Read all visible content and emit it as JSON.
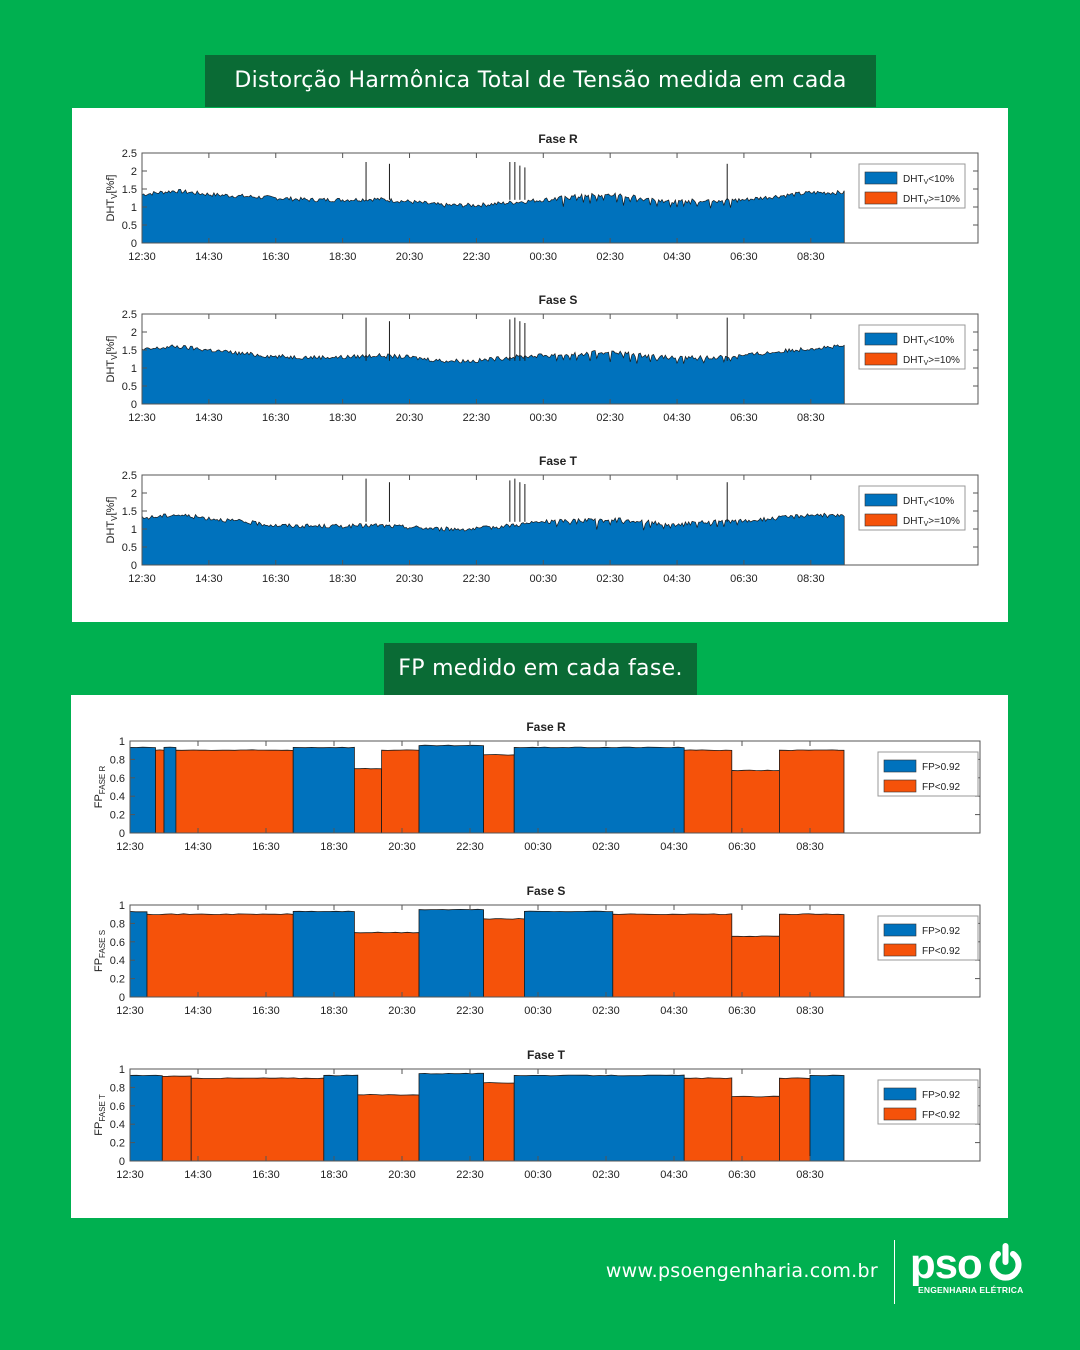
{
  "colors": {
    "background": "#00b050",
    "banner": "#0a6b35",
    "blue": "#0072bd",
    "orange": "#f5520a"
  },
  "section_titles": {
    "dht": "Distorção Harmônica Total de Tensão medida em cada fase.",
    "fp": "FP medido em cada fase."
  },
  "footer": {
    "url": "www.psoengenharia.com.br",
    "logo_text": "pso",
    "logo_subtitle": "ENGENHARIA ELÉTRICA",
    "logo_icon": "power-icon"
  },
  "chart_data": [
    {
      "id": "dht-r",
      "type": "area",
      "title": "Fase R",
      "ylabel": "DHT",
      "ylabel_sub": "V",
      "ylabel_suffix": "[%f]",
      "ylim": [
        0,
        2.5
      ],
      "yticks": [
        "0",
        "0.5",
        "1",
        "1.5",
        "2",
        "2.5"
      ],
      "xlabels": [
        "12:30",
        "14:30",
        "16:30",
        "18:30",
        "20:30",
        "22:30",
        "00:30",
        "02:30",
        "04:30",
        "06:30",
        "08:30"
      ],
      "grid": false,
      "legend_position": "right",
      "legend": [
        {
          "main": "DHT",
          "sub": "V",
          "suffix": "<10%",
          "color": "#0072bd"
        },
        {
          "main": "DHT",
          "sub": "V",
          "suffix": ">=10%",
          "color": "#f5520a"
        }
      ],
      "x": [
        0,
        1,
        2,
        3,
        4,
        5,
        6,
        7,
        8,
        9,
        10,
        11,
        12,
        13,
        14,
        15,
        16,
        17,
        18,
        19,
        20,
        21
      ],
      "y": [
        1.35,
        1.45,
        1.35,
        1.3,
        1.25,
        1.2,
        1.2,
        1.22,
        1.15,
        1.05,
        1.05,
        1.12,
        1.2,
        1.3,
        1.35,
        1.25,
        1.15,
        1.2,
        1.2,
        1.3,
        1.4,
        1.4
      ],
      "spikes": [
        [
          6.7,
          2.25
        ],
        [
          7.4,
          2.2
        ],
        [
          11,
          2.25
        ],
        [
          11.15,
          2.25
        ],
        [
          11.3,
          2.15
        ],
        [
          11.45,
          2.1
        ],
        [
          17.5,
          2.2
        ]
      ]
    },
    {
      "id": "dht-s",
      "type": "area",
      "title": "Fase S",
      "ylabel": "DHT",
      "ylabel_sub": "V",
      "ylabel_suffix": "[%f]",
      "ylim": [
        0,
        2.5
      ],
      "yticks": [
        "0",
        "0.5",
        "1",
        "1.5",
        "2",
        "2.5"
      ],
      "xlabels": [
        "12:30",
        "14:30",
        "16:30",
        "18:30",
        "20:30",
        "22:30",
        "00:30",
        "02:30",
        "04:30",
        "06:30",
        "08:30"
      ],
      "grid": false,
      "legend_position": "right",
      "legend": [
        {
          "main": "DHT",
          "sub": "V",
          "suffix": "<10%",
          "color": "#0072bd"
        },
        {
          "main": "DHT",
          "sub": "V",
          "suffix": ">=10%",
          "color": "#f5520a"
        }
      ],
      "x": [
        0,
        1,
        2,
        3,
        4,
        5,
        6,
        7,
        8,
        9,
        10,
        11,
        12,
        13,
        14,
        15,
        16,
        17,
        18,
        19,
        20,
        21
      ],
      "y": [
        1.5,
        1.6,
        1.5,
        1.4,
        1.32,
        1.3,
        1.3,
        1.35,
        1.3,
        1.2,
        1.2,
        1.3,
        1.35,
        1.4,
        1.45,
        1.35,
        1.28,
        1.3,
        1.35,
        1.45,
        1.55,
        1.6
      ],
      "spikes": [
        [
          6.7,
          2.4
        ],
        [
          7.4,
          2.3
        ],
        [
          11,
          2.35
        ],
        [
          11.15,
          2.4
        ],
        [
          11.3,
          2.3
        ],
        [
          11.45,
          2.25
        ],
        [
          17.5,
          2.4
        ]
      ]
    },
    {
      "id": "dht-t",
      "type": "area",
      "title": "Fase T",
      "ylabel": "DHT",
      "ylabel_sub": "V",
      "ylabel_suffix": "[%f]",
      "ylim": [
        0,
        2.5
      ],
      "yticks": [
        "0",
        "0.5",
        "1",
        "1.5",
        "2",
        "2.5"
      ],
      "xlabels": [
        "12:30",
        "14:30",
        "16:30",
        "18:30",
        "20:30",
        "22:30",
        "00:30",
        "02:30",
        "04:30",
        "06:30",
        "08:30"
      ],
      "grid": false,
      "legend_position": "right",
      "legend": [
        {
          "main": "DHT",
          "sub": "V",
          "suffix": "<10%",
          "color": "#0072bd"
        },
        {
          "main": "DHT",
          "sub": "V",
          "suffix": ">=10%",
          "color": "#f5520a"
        }
      ],
      "x": [
        0,
        1,
        2,
        3,
        4,
        5,
        6,
        7,
        8,
        9,
        10,
        11,
        12,
        13,
        14,
        15,
        16,
        17,
        18,
        19,
        20,
        21
      ],
      "y": [
        1.3,
        1.4,
        1.3,
        1.2,
        1.1,
        1.08,
        1.08,
        1.1,
        1.05,
        1.0,
        1.0,
        1.1,
        1.2,
        1.25,
        1.28,
        1.2,
        1.12,
        1.2,
        1.22,
        1.3,
        1.4,
        1.35
      ],
      "spikes": [
        [
          6.7,
          2.4
        ],
        [
          7.4,
          2.3
        ],
        [
          11,
          2.35
        ],
        [
          11.15,
          2.4
        ],
        [
          11.3,
          2.3
        ],
        [
          11.45,
          2.25
        ],
        [
          17.5,
          2.3
        ]
      ]
    },
    {
      "id": "fp-r",
      "type": "bar",
      "title": "Fase R",
      "ylabel": "FP",
      "ylabel_sub": "FASE R",
      "ylim": [
        0,
        1
      ],
      "yticks": [
        "0",
        "0.2",
        "0.4",
        "0.6",
        "0.8",
        "1"
      ],
      "xlabels": [
        "12:30",
        "14:30",
        "16:30",
        "18:30",
        "20:30",
        "22:30",
        "00:30",
        "02:30",
        "04:30",
        "06:30",
        "08:30"
      ],
      "grid": false,
      "legend_position": "right",
      "legend": [
        {
          "main": "FP>0.92",
          "color": "#0072bd"
        },
        {
          "main": "FP<0.92",
          "color": "#f5520a"
        }
      ],
      "segments": [
        {
          "x0": 0,
          "x1": 0.75,
          "value": 0.93,
          "class": "FP>0.92"
        },
        {
          "x0": 0.75,
          "x1": 1.0,
          "value": 0.9,
          "class": "FP<0.92"
        },
        {
          "x0": 1.0,
          "x1": 1.35,
          "value": 0.93,
          "class": "FP>0.92"
        },
        {
          "x0": 1.35,
          "x1": 4.8,
          "value": 0.9,
          "class": "FP<0.92"
        },
        {
          "x0": 4.8,
          "x1": 6.6,
          "value": 0.93,
          "class": "FP>0.92"
        },
        {
          "x0": 6.6,
          "x1": 7.4,
          "value": 0.7,
          "class": "FP<0.92"
        },
        {
          "x0": 7.4,
          "x1": 8.5,
          "value": 0.9,
          "class": "FP<0.92"
        },
        {
          "x0": 8.5,
          "x1": 10.4,
          "value": 0.95,
          "class": "FP>0.92"
        },
        {
          "x0": 10.4,
          "x1": 11.3,
          "value": 0.85,
          "class": "FP<0.92"
        },
        {
          "x0": 11.3,
          "x1": 16.3,
          "value": 0.93,
          "class": "FP>0.92"
        },
        {
          "x0": 16.3,
          "x1": 17.7,
          "value": 0.9,
          "class": "FP<0.92"
        },
        {
          "x0": 17.7,
          "x1": 19.1,
          "value": 0.68,
          "class": "FP<0.92"
        },
        {
          "x0": 19.1,
          "x1": 21.0,
          "value": 0.9,
          "class": "FP<0.92"
        }
      ]
    },
    {
      "id": "fp-s",
      "type": "bar",
      "title": "Fase S",
      "ylabel": "FP",
      "ylabel_sub": "FASE S",
      "ylim": [
        0,
        1
      ],
      "yticks": [
        "0",
        "0.2",
        "0.4",
        "0.6",
        "0.8",
        "1"
      ],
      "xlabels": [
        "12:30",
        "14:30",
        "16:30",
        "18:30",
        "20:30",
        "22:30",
        "00:30",
        "02:30",
        "04:30",
        "06:30",
        "08:30"
      ],
      "grid": false,
      "legend_position": "right",
      "legend": [
        {
          "main": "FP>0.92",
          "color": "#0072bd"
        },
        {
          "main": "FP<0.92",
          "color": "#f5520a"
        }
      ],
      "segments": [
        {
          "x0": 0,
          "x1": 0.5,
          "value": 0.93,
          "class": "FP>0.92"
        },
        {
          "x0": 0.5,
          "x1": 4.8,
          "value": 0.9,
          "class": "FP<0.92"
        },
        {
          "x0": 4.8,
          "x1": 6.6,
          "value": 0.93,
          "class": "FP>0.92"
        },
        {
          "x0": 6.6,
          "x1": 8.5,
          "value": 0.7,
          "class": "FP<0.92"
        },
        {
          "x0": 8.5,
          "x1": 10.4,
          "value": 0.95,
          "class": "FP>0.92"
        },
        {
          "x0": 10.4,
          "x1": 11.6,
          "value": 0.85,
          "class": "FP<0.92"
        },
        {
          "x0": 11.6,
          "x1": 14.2,
          "value": 0.93,
          "class": "FP>0.92"
        },
        {
          "x0": 14.2,
          "x1": 17.7,
          "value": 0.9,
          "class": "FP<0.92"
        },
        {
          "x0": 17.7,
          "x1": 19.1,
          "value": 0.66,
          "class": "FP<0.92"
        },
        {
          "x0": 19.1,
          "x1": 21.0,
          "value": 0.9,
          "class": "FP<0.92"
        }
      ]
    },
    {
      "id": "fp-t",
      "type": "bar",
      "title": "Fase T",
      "ylabel": "FP",
      "ylabel_sub": "FASE T",
      "ylim": [
        0,
        1
      ],
      "yticks": [
        "0",
        "0.2",
        "0.4",
        "0.6",
        "0.8",
        "1"
      ],
      "xlabels": [
        "12:30",
        "14:30",
        "16:30",
        "18:30",
        "20:30",
        "22:30",
        "00:30",
        "02:30",
        "04:30",
        "06:30",
        "08:30"
      ],
      "grid": false,
      "legend_position": "right",
      "legend": [
        {
          "main": "FP>0.92",
          "color": "#0072bd"
        },
        {
          "main": "FP<0.92",
          "color": "#f5520a"
        }
      ],
      "segments": [
        {
          "x0": 0,
          "x1": 0.95,
          "value": 0.93,
          "class": "FP>0.92"
        },
        {
          "x0": 0.95,
          "x1": 1.8,
          "value": 0.92,
          "class": "FP<0.92"
        },
        {
          "x0": 1.8,
          "x1": 5.7,
          "value": 0.9,
          "class": "FP<0.92"
        },
        {
          "x0": 5.7,
          "x1": 6.7,
          "value": 0.93,
          "class": "FP>0.92"
        },
        {
          "x0": 6.7,
          "x1": 8.5,
          "value": 0.72,
          "class": "FP<0.92"
        },
        {
          "x0": 8.5,
          "x1": 10.4,
          "value": 0.95,
          "class": "FP>0.92"
        },
        {
          "x0": 10.4,
          "x1": 11.3,
          "value": 0.85,
          "class": "FP<0.92"
        },
        {
          "x0": 11.3,
          "x1": 16.3,
          "value": 0.93,
          "class": "FP>0.92"
        },
        {
          "x0": 16.3,
          "x1": 17.7,
          "value": 0.9,
          "class": "FP<0.92"
        },
        {
          "x0": 17.7,
          "x1": 19.1,
          "value": 0.7,
          "class": "FP<0.92"
        },
        {
          "x0": 19.1,
          "x1": 20.0,
          "value": 0.9,
          "class": "FP<0.92"
        },
        {
          "x0": 20.0,
          "x1": 21.0,
          "value": 0.93,
          "class": "FP>0.92"
        }
      ]
    }
  ]
}
